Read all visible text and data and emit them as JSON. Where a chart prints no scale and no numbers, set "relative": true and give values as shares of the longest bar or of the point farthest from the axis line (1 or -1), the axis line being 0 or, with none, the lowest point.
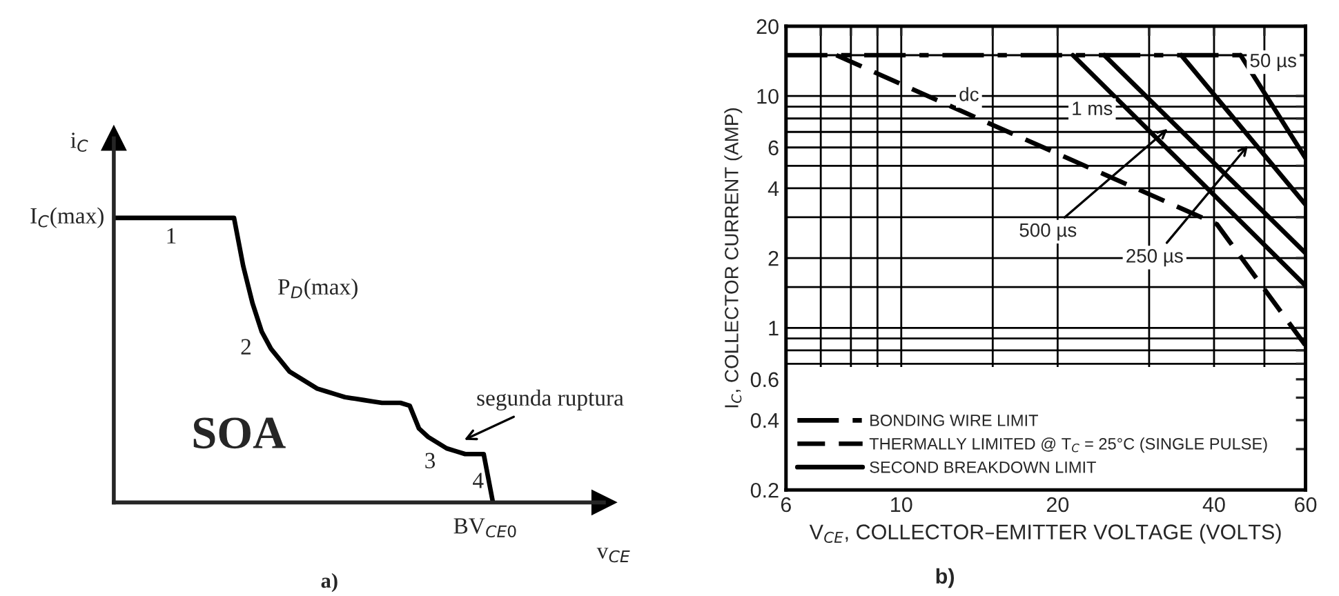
{
  "chart_data": [
    {
      "type": "line",
      "relative": true,
      "tick_labels": false,
      "xlabel": "v$_{CE}$",
      "ylabel": "i$_{C}$",
      "categories": [
        null,
        null,
        null,
        null,
        null,
        null,
        null,
        null,
        null,
        null,
        null,
        null,
        null,
        null,
        null,
        null,
        null,
        null,
        null,
        null,
        null,
        null,
        null,
        null,
        null,
        null,
        null,
        null,
        null,
        null,
        null,
        null,
        null,
        null,
        null,
        null,
        null,
        null,
        null,
        null,
        null,
        null
      ],
      "series": [
        {
          "color": "#000000",
          "values": [
            1,
            1,
            1,
            1,
            1,
            1,
            1,
            1,
            1,
            1,
            1,
            1,
            1,
            1,
            0.83,
            0.7,
            0.6,
            0.54,
            0.5,
            0.46,
            0.44,
            0.42,
            0.4,
            0.39,
            0.38,
            0.37,
            0.365,
            0.36,
            0.355,
            0.35,
            0.35,
            0.35,
            0.34,
            0.26,
            0.23,
            0.21,
            0.19,
            0.18,
            0.17,
            0.17,
            0.17,
            0
          ]
        }
      ],
      "annotations": [
        "I$_{C}$(max)",
        "1",
        "P$_{D}$(max)",
        "2",
        "3",
        "4",
        "SOA",
        "segunda ruptura",
        "BV$_{CE0}$",
        "a)"
      ]
    },
    {
      "type": "line",
      "log": "xy",
      "grid": true,
      "legend": "bottom",
      "xlabel": "V$_{CE}$, COLLECTOR–EMITTER VOLTAGE (VOLTS)",
      "ylabel": "I$_{C}$, COLLECTOR CURRENT (AMP)",
      "xlim": [
        6,
        60
      ],
      "ylim": [
        0.2,
        20
      ],
      "xticks": [
        6,
        {
          "value": 7,
          "label": null
        },
        {
          "value": 8,
          "label": null
        },
        {
          "value": 9,
          "label": null
        },
        10,
        {
          "value": 15,
          "label": null
        },
        20,
        {
          "value": 30,
          "label": null
        },
        40,
        {
          "value": 50,
          "label": null
        },
        60
      ],
      "yticks": [
        0.2,
        {
          "value": 0.3,
          "label": null
        },
        0.4,
        {
          "value": 0.5,
          "label": null
        },
        0.6,
        {
          "value": 0.7,
          "label": null
        },
        {
          "value": 0.8,
          "label": null
        },
        {
          "value": 0.9,
          "label": null
        },
        1,
        {
          "value": 1.5,
          "label": null
        },
        2,
        {
          "value": 3,
          "label": null
        },
        4,
        {
          "value": 5,
          "label": null
        },
        6,
        {
          "value": 7,
          "label": null
        },
        {
          "value": 8,
          "label": null
        },
        {
          "value": 9,
          "label": null
        },
        10,
        {
          "value": 15,
          "label": null
        },
        20
      ],
      "series": [
        {
          "name": "BONDING WIRE LIMIT",
          "color": "#000000",
          "line_style": "dashdot",
          "x": [
            6,
            45
          ],
          "values": [
            15,
            15
          ]
        },
        {
          "name": "THERMALLY LIMITED @ T$_{C}$ = 25°C (SINGLE PULSE)",
          "color": "#000000",
          "line_style": "dashed",
          "x": [
            7.5,
            15,
            40.5,
            60
          ],
          "values": [
            15,
            7.5,
            2.8,
            0.84
          ]
        },
        {
          "name": "SECOND BREAKDOWN LIMIT",
          "color": "#000000",
          "line_style": "solid",
          "x": [
            21.4,
            60
          ],
          "values": [
            15,
            1.52
          ]
        },
        {
          "color": "#000000",
          "line_style": "solid",
          "x": [
            24.6,
            60
          ],
          "values": [
            15,
            2.1
          ]
        },
        {
          "color": "#000000",
          "line_style": "solid",
          "x": [
            34.6,
            60
          ],
          "values": [
            15,
            3.4
          ]
        },
        {
          "color": "#000000",
          "line_style": "solid",
          "x": [
            45,
            60
          ],
          "values": [
            15,
            5.4
          ]
        }
      ],
      "annotations": [
        {
          "text": "dc",
          "x": 13.5,
          "y": 10
        },
        {
          "text": "1 ms",
          "x": 23.3,
          "y": 8.7
        },
        {
          "text": "500 µs",
          "x": 33,
          "y": 7.4
        },
        {
          "text": "250 µs",
          "x": 47,
          "y": 6.3
        },
        {
          "text": "50 µs",
          "x": 52,
          "y": 14
        },
        "b)"
      ]
    }
  ]
}
